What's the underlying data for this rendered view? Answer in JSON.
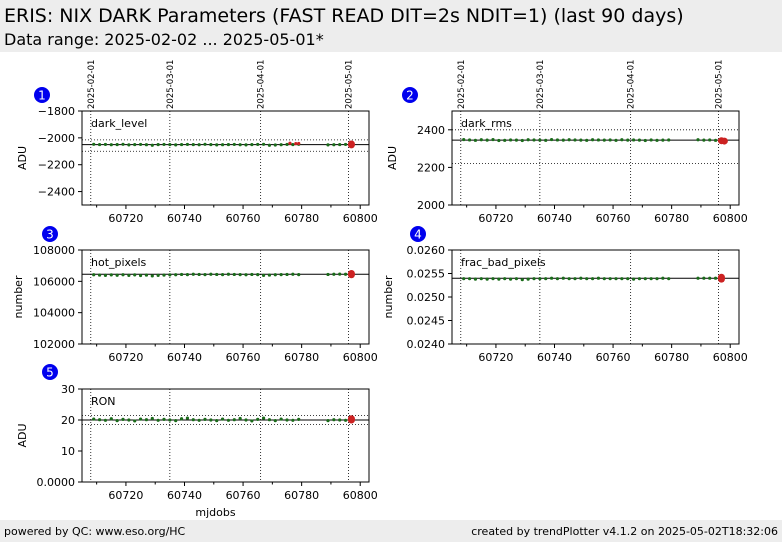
{
  "header": {
    "title": "ERIS: NIX DARK Parameters (FAST READ DIT=2s NDIT=1) (last 90 days)",
    "subtitle": "Data range: 2025-02-02 ... 2025-05-01*"
  },
  "footer": {
    "left": "powered by QC: www.eso.org/HC",
    "right": "created by trendPlotter v4.1.2 on 2025-05-02T18:32:06"
  },
  "colors": {
    "points": "#1a6b1a",
    "latest": "#cc2222",
    "badge": "#0000ee"
  },
  "chart_data": [
    {
      "index": "1",
      "type": "scatter",
      "label": "dark_level",
      "ylabel": "ADU",
      "xlabel": "",
      "xlim": [
        60705,
        60803
      ],
      "ylim": [
        -2500,
        -1800
      ],
      "yticks": [
        -1800,
        -2000,
        -2200,
        -2400
      ],
      "xticks": [
        60720,
        60740,
        60760,
        60780,
        60800
      ],
      "date_marks": [
        {
          "x": 60708,
          "label": "2025-02-01"
        },
        {
          "x": 60735,
          "label": "2025-03-01"
        },
        {
          "x": 60766,
          "label": "2025-04-01"
        },
        {
          "x": 60796,
          "label": "2025-05-01"
        }
      ],
      "ref": -2050,
      "band": [
        -2015,
        -2100
      ],
      "series": [
        {
          "x": [
            60709,
            60711,
            60713,
            60715,
            60717,
            60719,
            60721,
            60723,
            60725,
            60727,
            60729,
            60731,
            60733,
            60735,
            60737,
            60739,
            60741,
            60743,
            60745,
            60747,
            60749,
            60751,
            60753,
            60755,
            60757,
            60759,
            60761,
            60763,
            60765,
            60767,
            60769,
            60771,
            60773,
            60775,
            60777,
            60779,
            60789,
            60791,
            60793,
            60795
          ],
          "y": [
            -2048,
            -2050,
            -2049,
            -2051,
            -2050,
            -2048,
            -2052,
            -2050,
            -2049,
            -2051,
            -2055,
            -2050,
            -2049,
            -2050,
            -2052,
            -2050,
            -2049,
            -2050,
            -2051,
            -2048,
            -2050,
            -2052,
            -2051,
            -2050,
            -2049,
            -2051,
            -2052,
            -2050,
            -2049,
            -2048,
            -2055,
            -2053,
            -2051,
            -2049,
            -2050,
            -2048,
            -2052,
            -2051,
            -2050,
            -2049
          ]
        },
        {
          "x": [
            60776,
            60778,
            60779
          ],
          "y": [
            -2040,
            -2043,
            -2042
          ]
        }
      ],
      "latest": {
        "x": [
          60797,
          60797
        ],
        "y": [
          -2046,
          -2052
        ]
      }
    },
    {
      "index": "2",
      "type": "scatter",
      "label": "dark_rms",
      "ylabel": "ADU",
      "xlabel": "",
      "xlim": [
        60705,
        60803
      ],
      "ylim": [
        2000,
        2500
      ],
      "yticks": [
        2000,
        2200,
        2400
      ],
      "xticks": [
        60720,
        60740,
        60760,
        60780,
        60800
      ],
      "date_marks": [
        {
          "x": 60708,
          "label": "2025-02-01"
        },
        {
          "x": 60735,
          "label": "2025-03-01"
        },
        {
          "x": 60766,
          "label": "2025-04-01"
        },
        {
          "x": 60796,
          "label": "2025-05-01"
        }
      ],
      "ref": 2345,
      "band": [
        2400,
        2220
      ],
      "series": [
        {
          "x": [
            60709,
            60711,
            60713,
            60715,
            60717,
            60719,
            60721,
            60723,
            60725,
            60727,
            60729,
            60731,
            60733,
            60735,
            60737,
            60739,
            60741,
            60743,
            60745,
            60747,
            60749,
            60751,
            60753,
            60755,
            60757,
            60759,
            60761,
            60763,
            60765,
            60767,
            60769,
            60771,
            60773,
            60775,
            60777,
            60779,
            60789,
            60791,
            60793,
            60795
          ],
          "y": [
            2348,
            2346,
            2344,
            2347,
            2345,
            2348,
            2343,
            2344,
            2346,
            2345,
            2343,
            2347,
            2346,
            2345,
            2344,
            2348,
            2346,
            2345,
            2347,
            2346,
            2345,
            2344,
            2347,
            2346,
            2345,
            2346,
            2344,
            2347,
            2345,
            2346,
            2345,
            2343,
            2346,
            2344,
            2345,
            2346,
            2347,
            2345,
            2346,
            2344
          ]
        }
      ],
      "latest": {
        "x": [
          60797,
          60798
        ],
        "y": [
          2342,
          2340
        ]
      }
    },
    {
      "index": "3",
      "type": "scatter",
      "label": "hot_pixels",
      "ylabel": "number",
      "xlabel": "",
      "xlim": [
        60705,
        60803
      ],
      "ylim": [
        102000,
        108000
      ],
      "yticks": [
        102000,
        104000,
        106000,
        108000
      ],
      "xticks": [
        60720,
        60740,
        60760,
        60780,
        60800
      ],
      "date_marks": [
        {
          "x": 60708,
          "label": ""
        },
        {
          "x": 60735,
          "label": ""
        },
        {
          "x": 60766,
          "label": ""
        },
        {
          "x": 60796,
          "label": ""
        }
      ],
      "ref": 106450,
      "band": [],
      "series": [
        {
          "x": [
            60709,
            60711,
            60713,
            60715,
            60717,
            60719,
            60721,
            60723,
            60725,
            60727,
            60729,
            60731,
            60733,
            60735,
            60737,
            60739,
            60741,
            60743,
            60745,
            60747,
            60749,
            60751,
            60753,
            60755,
            60757,
            60759,
            60761,
            60763,
            60765,
            60767,
            60769,
            60771,
            60773,
            60775,
            60777,
            60779,
            60789,
            60791,
            60793,
            60795
          ],
          "y": [
            106420,
            106400,
            106380,
            106410,
            106390,
            106420,
            106380,
            106410,
            106370,
            106400,
            106350,
            106380,
            106400,
            106410,
            106420,
            106440,
            106430,
            106450,
            106440,
            106430,
            106450,
            106440,
            106430,
            106450,
            106440,
            106430,
            106420,
            106440,
            106430,
            106380,
            106400,
            106420,
            106430,
            106440,
            106450,
            106430,
            106440,
            106450,
            106460,
            106450
          ]
        }
      ],
      "latest": {
        "x": [
          60797,
          60797
        ],
        "y": [
          106500,
          106420
        ]
      }
    },
    {
      "index": "4",
      "type": "scatter",
      "label": "frac_bad_pixels",
      "ylabel": "number",
      "xlabel": "",
      "xlim": [
        60705,
        60803
      ],
      "ylim": [
        0.024,
        0.026
      ],
      "yticks": [
        0.024,
        0.0245,
        0.025,
        0.0255,
        0.026
      ],
      "xticks": [
        60720,
        60740,
        60760,
        60780,
        60800
      ],
      "date_marks": [
        {
          "x": 60708,
          "label": ""
        },
        {
          "x": 60735,
          "label": ""
        },
        {
          "x": 60766,
          "label": ""
        },
        {
          "x": 60796,
          "label": ""
        }
      ],
      "ref": 0.0254,
      "band": [],
      "series": [
        {
          "x": [
            60709,
            60711,
            60713,
            60715,
            60717,
            60719,
            60721,
            60723,
            60725,
            60727,
            60729,
            60731,
            60733,
            60735,
            60737,
            60739,
            60741,
            60743,
            60745,
            60747,
            60749,
            60751,
            60753,
            60755,
            60757,
            60759,
            60761,
            60763,
            60765,
            60767,
            60769,
            60771,
            60773,
            60775,
            60777,
            60779,
            60789,
            60791,
            60793,
            60795
          ],
          "y": [
            0.02539,
            0.02539,
            0.02538,
            0.02539,
            0.02538,
            0.02539,
            0.02538,
            0.02539,
            0.02538,
            0.02539,
            0.02537,
            0.02538,
            0.02539,
            0.02539,
            0.02539,
            0.0254,
            0.02539,
            0.0254,
            0.02539,
            0.02539,
            0.0254,
            0.02539,
            0.02539,
            0.0254,
            0.02539,
            0.02539,
            0.02539,
            0.02539,
            0.02539,
            0.02538,
            0.02539,
            0.02539,
            0.02539,
            0.02539,
            0.0254,
            0.02539,
            0.0254,
            0.0254,
            0.0254,
            0.0254
          ]
        }
      ],
      "latest": {
        "x": [
          60797,
          60797
        ],
        "y": [
          0.02542,
          0.02538
        ]
      }
    },
    {
      "index": "5",
      "type": "scatter",
      "label": "RON",
      "ylabel": "ADU",
      "xlabel": "mjdobs",
      "xlim": [
        60705,
        60803
      ],
      "ylim": [
        0,
        30
      ],
      "yticks": [
        0,
        10,
        20,
        30
      ],
      "xticks": [
        60720,
        60740,
        60760,
        60780,
        60800
      ],
      "date_marks": [
        {
          "x": 60708,
          "label": ""
        },
        {
          "x": 60735,
          "label": ""
        },
        {
          "x": 60766,
          "label": ""
        },
        {
          "x": 60796,
          "label": ""
        }
      ],
      "ref": 20.0,
      "band": [
        21.5,
        18.5
      ],
      "series": [
        {
          "x": [
            60709,
            60711,
            60713,
            60715,
            60717,
            60719,
            60721,
            60723,
            60725,
            60727,
            60729,
            60731,
            60733,
            60735,
            60737,
            60739,
            60741,
            60743,
            60745,
            60747,
            60749,
            60751,
            60753,
            60755,
            60757,
            60759,
            60761,
            60763,
            60765,
            60767,
            60769,
            60771,
            60773,
            60775,
            60777,
            60779,
            60789,
            60791,
            60793,
            60795
          ],
          "y": [
            20.3,
            20.1,
            19.9,
            20.4,
            19.8,
            20.2,
            20.0,
            19.7,
            20.3,
            20.1,
            20.5,
            19.9,
            20.2,
            20.0,
            19.8,
            20.4,
            20.6,
            20.1,
            19.9,
            20.2,
            20.0,
            19.8,
            20.3,
            19.9,
            20.1,
            20.5,
            20.0,
            19.7,
            20.2,
            20.6,
            20.1,
            19.8,
            20.3,
            20.0,
            19.9,
            20.2,
            19.8,
            20.1,
            20.0,
            19.9
          ]
        }
      ],
      "latest": {
        "x": [
          60797,
          60797
        ],
        "y": [
          20.4,
          20.0
        ]
      }
    }
  ]
}
